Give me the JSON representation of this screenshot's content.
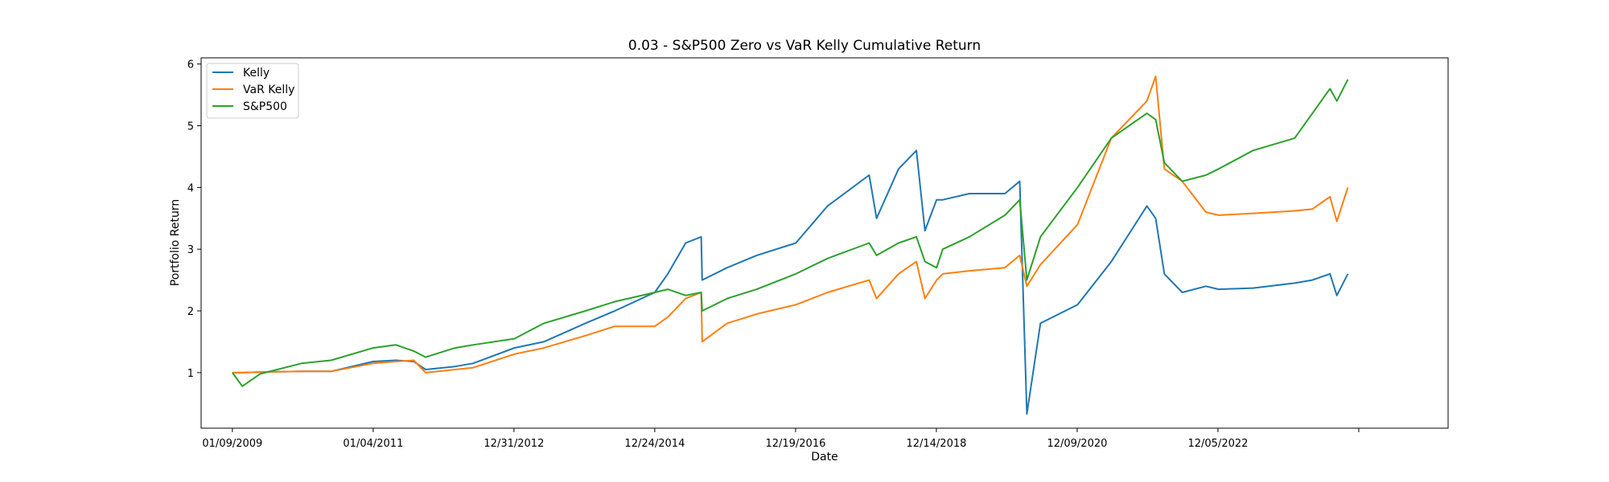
{
  "chart_data": {
    "type": "line",
    "title": "0.03 - S&P500 Zero vs VaR Kelly Cumulative Return",
    "xlabel": "Date",
    "ylabel": "Portfolio Return",
    "x_ticks": [
      "01/09/2009",
      "01/04/2011",
      "12/31/2012",
      "12/24/2014",
      "12/19/2016",
      "12/14/2018",
      "12/09/2020",
      "12/05/2022",
      ""
    ],
    "y_ticks": [
      1,
      2,
      3,
      4,
      5,
      6
    ],
    "xlim": [
      "2008-08-01",
      "2026-03-01"
    ],
    "ylim": [
      0.1,
      6.1
    ],
    "grid": false,
    "legend_position": "top-left",
    "colors": {
      "Kelly": "#1f77b4",
      "VaR Kelly": "#ff7f0e",
      "S&P500": "#2ca02c"
    },
    "x": [
      "2009-01-09",
      "2009-03-01",
      "2009-06-01",
      "2010-01-01",
      "2010-06-01",
      "2011-01-04",
      "2011-05-01",
      "2011-08-01",
      "2011-10-01",
      "2012-03-01",
      "2012-06-01",
      "2012-12-31",
      "2013-06-01",
      "2014-01-01",
      "2014-06-01",
      "2014-12-24",
      "2015-03-01",
      "2015-06-01",
      "2015-08-20",
      "2015-08-25",
      "2016-01-01",
      "2016-06-01",
      "2016-12-19",
      "2017-06-01",
      "2018-01-01",
      "2018-02-08",
      "2018-06-01",
      "2018-09-01",
      "2018-10-15",
      "2018-12-14",
      "2019-01-15",
      "2019-06-01",
      "2019-12-01",
      "2020-02-15",
      "2020-03-23",
      "2020-06-01",
      "2020-12-09",
      "2021-06-01",
      "2021-12-01",
      "2022-01-15",
      "2022-03-01",
      "2022-06-01",
      "2022-10-01",
      "2022-12-05",
      "2023-06-01",
      "2024-01-01",
      "2024-04-01",
      "2024-07-01",
      "2024-08-05",
      "2024-10-01"
    ],
    "series": [
      {
        "name": "Kelly",
        "values": [
          1.0,
          1.0,
          1.01,
          1.02,
          1.02,
          1.18,
          1.2,
          1.18,
          1.05,
          1.1,
          1.15,
          1.4,
          1.5,
          1.8,
          2.0,
          2.3,
          2.6,
          3.1,
          3.2,
          2.5,
          2.7,
          2.9,
          3.1,
          3.7,
          4.2,
          3.5,
          4.3,
          4.6,
          3.3,
          3.8,
          3.8,
          3.9,
          3.9,
          4.1,
          0.33,
          1.8,
          2.1,
          2.8,
          3.7,
          3.5,
          2.6,
          2.3,
          2.4,
          2.35,
          2.37,
          2.45,
          2.5,
          2.6,
          2.25,
          2.6
        ]
      },
      {
        "name": "VaR Kelly",
        "values": [
          1.0,
          1.0,
          1.01,
          1.02,
          1.02,
          1.15,
          1.18,
          1.2,
          1.0,
          1.05,
          1.08,
          1.3,
          1.4,
          1.6,
          1.75,
          1.75,
          1.9,
          2.2,
          2.3,
          1.5,
          1.8,
          1.95,
          2.1,
          2.3,
          2.5,
          2.2,
          2.6,
          2.8,
          2.2,
          2.5,
          2.6,
          2.65,
          2.7,
          2.9,
          2.4,
          2.75,
          3.4,
          4.8,
          5.4,
          5.8,
          4.3,
          4.1,
          3.6,
          3.55,
          3.58,
          3.62,
          3.65,
          3.85,
          3.45,
          4.0
        ]
      },
      {
        "name": "S&P500",
        "values": [
          1.0,
          0.78,
          0.98,
          1.15,
          1.2,
          1.4,
          1.45,
          1.35,
          1.25,
          1.4,
          1.45,
          1.55,
          1.8,
          2.0,
          2.15,
          2.3,
          2.35,
          2.25,
          2.3,
          2.0,
          2.2,
          2.35,
          2.6,
          2.85,
          3.1,
          2.9,
          3.1,
          3.2,
          2.8,
          2.7,
          3.0,
          3.2,
          3.55,
          3.8,
          2.5,
          3.2,
          4.0,
          4.8,
          5.2,
          5.1,
          4.4,
          4.1,
          4.2,
          4.3,
          4.6,
          4.8,
          5.2,
          5.6,
          5.4,
          5.75
        ]
      }
    ]
  }
}
